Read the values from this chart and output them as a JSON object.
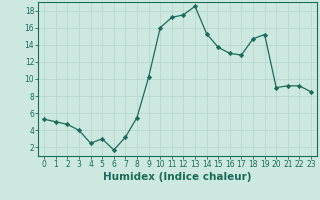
{
  "x": [
    0,
    1,
    2,
    3,
    4,
    5,
    6,
    7,
    8,
    9,
    10,
    11,
    12,
    13,
    14,
    15,
    16,
    17,
    18,
    19,
    20,
    21,
    22,
    23
  ],
  "y": [
    5.3,
    5.0,
    4.7,
    4.0,
    2.5,
    3.0,
    1.7,
    3.2,
    5.5,
    10.2,
    16.0,
    17.2,
    17.5,
    18.5,
    15.3,
    13.7,
    13.0,
    12.8,
    14.7,
    15.2,
    9.0,
    9.2,
    9.2,
    8.5
  ],
  "xlabel": "Humidex (Indice chaleur)",
  "line_color": "#1a6b5a",
  "marker": "D",
  "marker_size": 2.2,
  "bg_color": "#cce8e0",
  "grid_color": "#b8d8cf",
  "ylim": [
    1,
    19
  ],
  "xlim": [
    -0.5,
    23.5
  ],
  "yticks": [
    2,
    4,
    6,
    8,
    10,
    12,
    14,
    16,
    18
  ],
  "xticks": [
    0,
    1,
    2,
    3,
    4,
    5,
    6,
    7,
    8,
    9,
    10,
    11,
    12,
    13,
    14,
    15,
    16,
    17,
    18,
    19,
    20,
    21,
    22,
    23
  ],
  "tick_label_size": 5.5,
  "xlabel_fontsize": 7.5
}
